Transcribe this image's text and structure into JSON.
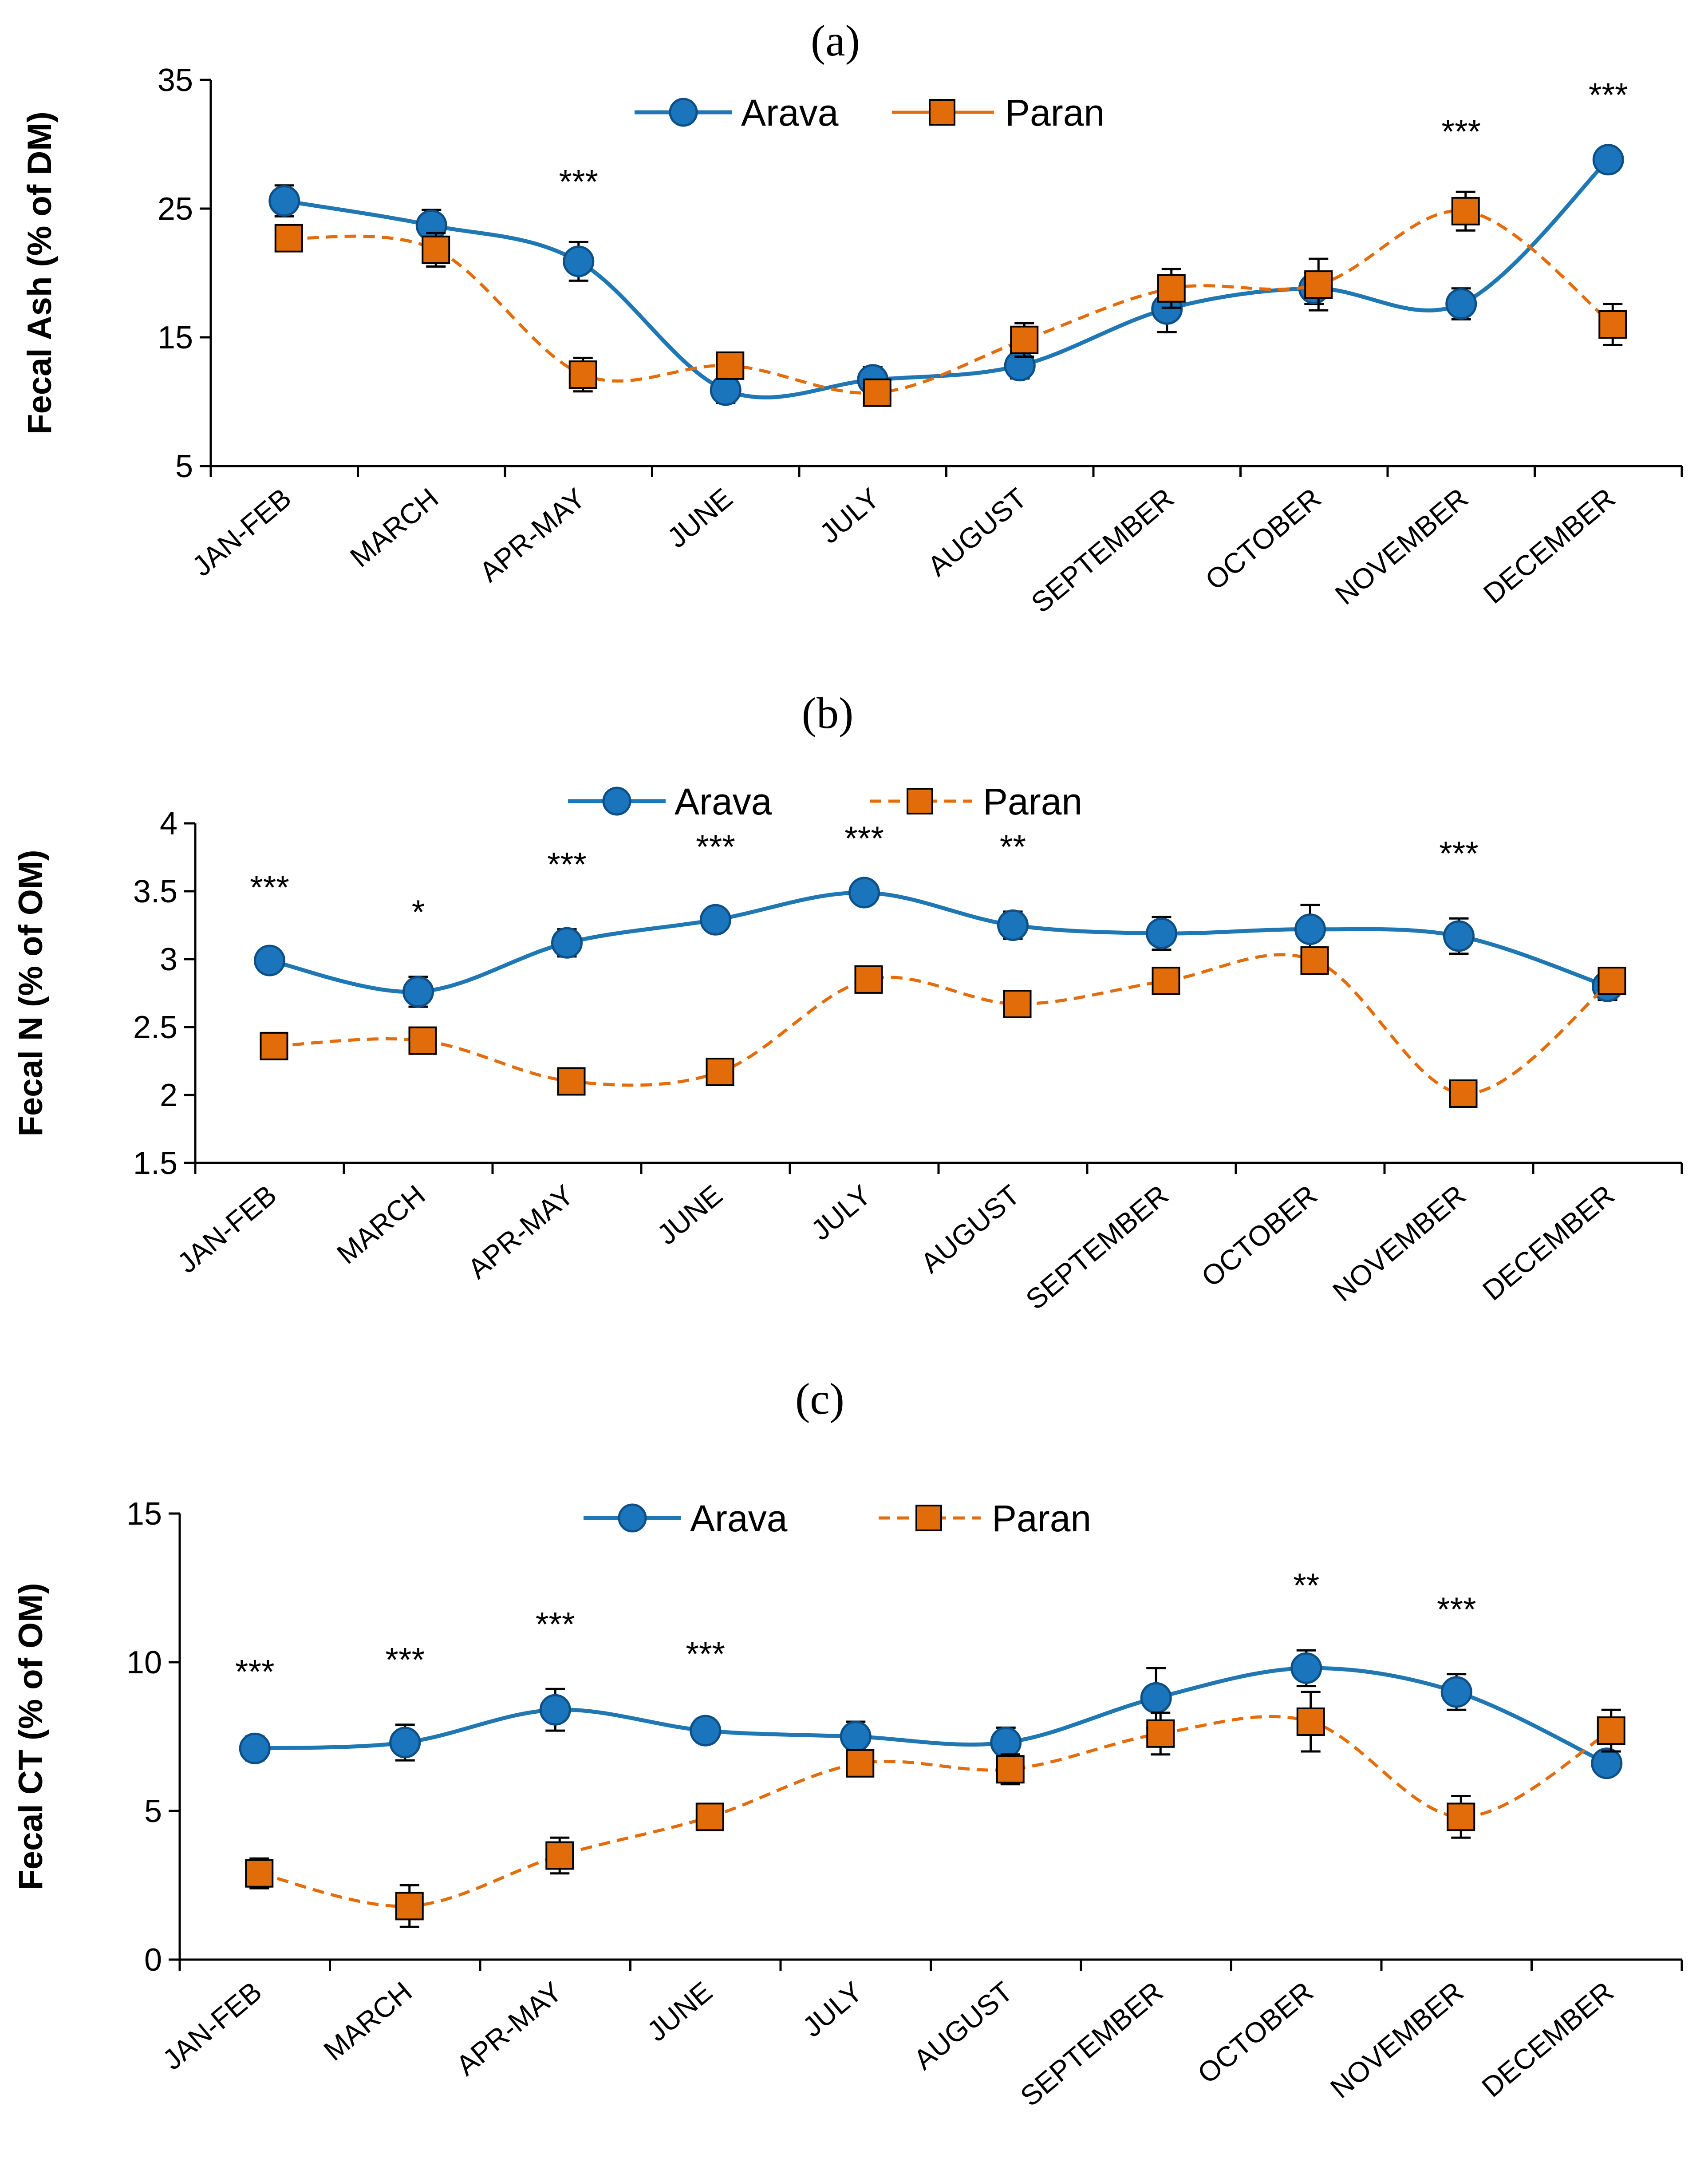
{
  "figure": {
    "colors": {
      "arava": "#1f77b4",
      "arava_marker": "#1a75bc",
      "paran": "#e46c0a",
      "paran_marker": "#e36c0a",
      "axis": "#000000"
    }
  },
  "chart_data": [
    {
      "type": "line",
      "panel_label": "(a)",
      "ylabel": "Fecal Ash (% of DM)",
      "xlabel": "",
      "ylim": [
        5,
        35
      ],
      "yticks": [
        5,
        15,
        25,
        35
      ],
      "categories": [
        "JAN-FEB",
        "MARCH",
        "APR-MAY",
        "JUNE",
        "JULY",
        "AUGUST",
        "SEPTEMBER",
        "OCTOBER",
        "NOVEMBER",
        "DECEMBER"
      ],
      "legend": [
        "Arava",
        "Paran"
      ],
      "legend_position": "top-center",
      "series": [
        {
          "name": "Arava",
          "style": "solid",
          "marker": "circle",
          "values": [
            25.6,
            23.7,
            20.9,
            10.9,
            11.7,
            12.8,
            17.2,
            18.8,
            17.6,
            28.8
          ],
          "errors": [
            1.2,
            1.2,
            1.5,
            1.0,
            1.0,
            1.0,
            1.8,
            1.2,
            1.2,
            0.5
          ]
        },
        {
          "name": "Paran",
          "style": "dashed",
          "marker": "square",
          "values": [
            22.7,
            21.8,
            12.1,
            12.8,
            10.7,
            14.8,
            18.8,
            19.1,
            24.8,
            16.0
          ],
          "errors": [
            0.8,
            1.3,
            1.3,
            1.0,
            1.0,
            1.3,
            1.5,
            2.0,
            1.5,
            1.6
          ]
        }
      ],
      "significance": [
        "",
        "",
        "***",
        "",
        "",
        "",
        "",
        "",
        "***",
        "***"
      ]
    },
    {
      "type": "line",
      "panel_label": "(b)",
      "ylabel": "Fecal N (% of OM)",
      "xlabel": "",
      "ylim": [
        1.5,
        4
      ],
      "yticks": [
        1.5,
        2,
        2.5,
        3,
        3.5,
        4
      ],
      "categories": [
        "JAN-FEB",
        "MARCH",
        "APR-MAY",
        "JUNE",
        "JULY",
        "AUGUST",
        "SEPTEMBER",
        "OCTOBER",
        "NOVEMBER",
        "DECEMBER"
      ],
      "legend": [
        "Arava",
        "Paran"
      ],
      "legend_position": "top-center",
      "series": [
        {
          "name": "Arava",
          "style": "solid",
          "marker": "circle",
          "values": [
            2.99,
            2.76,
            3.12,
            3.29,
            3.49,
            3.25,
            3.19,
            3.22,
            3.17,
            2.8
          ],
          "errors": [
            0.06,
            0.11,
            0.1,
            0.06,
            0.08,
            0.1,
            0.12,
            0.18,
            0.13,
            0.1
          ]
        },
        {
          "name": "Paran",
          "style": "dashed",
          "marker": "square",
          "values": [
            2.36,
            2.4,
            2.1,
            2.17,
            2.85,
            2.67,
            2.84,
            2.99,
            2.01,
            2.84
          ]
        }
      ],
      "significance": [
        "***",
        "*",
        "***",
        "***",
        "***",
        "**",
        "",
        "",
        "***",
        ""
      ]
    },
    {
      "type": "line",
      "panel_label": "(c)",
      "ylabel": "Fecal CT (% of OM)",
      "xlabel": "",
      "ylim": [
        0,
        15
      ],
      "yticks": [
        0,
        5,
        10,
        15
      ],
      "categories": [
        "JAN-FEB",
        "MARCH",
        "APR-MAY",
        "JUNE",
        "JULY",
        "AUGUST",
        "SEPTEMBER",
        "OCTOBER",
        "NOVEMBER",
        "DECEMBER"
      ],
      "legend": [
        "Arava",
        "Paran"
      ],
      "legend_position": "top-center",
      "series": [
        {
          "name": "Arava",
          "style": "solid",
          "marker": "circle",
          "values": [
            7.1,
            7.3,
            8.4,
            7.7,
            7.5,
            7.3,
            8.8,
            9.8,
            9.0,
            6.6
          ],
          "errors": [
            0.4,
            0.6,
            0.7,
            0.4,
            0.5,
            0.5,
            1.0,
            0.6,
            0.6,
            0.3
          ]
        },
        {
          "name": "Paran",
          "style": "dashed",
          "marker": "square",
          "values": [
            2.9,
            1.8,
            3.5,
            4.8,
            6.6,
            6.4,
            7.6,
            8.0,
            4.8,
            7.7
          ],
          "errors": [
            0.5,
            0.7,
            0.6,
            0.3,
            0.4,
            0.5,
            0.7,
            1.0,
            0.7,
            0.7
          ]
        }
      ],
      "significance": [
        "***",
        "***",
        "***",
        "***",
        "",
        "",
        "",
        "**",
        "***",
        ""
      ]
    }
  ]
}
